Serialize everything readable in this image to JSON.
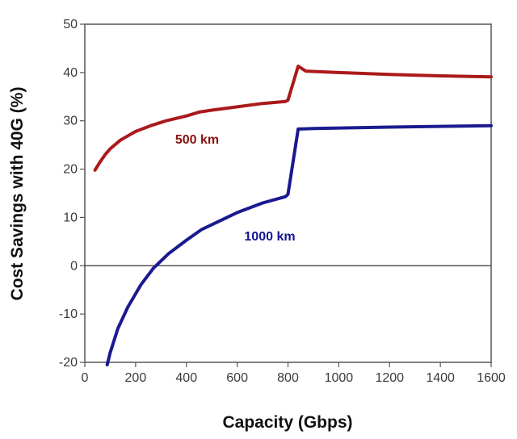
{
  "chart_data": {
    "type": "line",
    "xlabel": "Capacity (Gbps)",
    "ylabel": "Cost Savings with 40G (%)",
    "xlim": [
      0,
      1600
    ],
    "ylim": [
      -20,
      50
    ],
    "xticks": [
      0,
      200,
      400,
      600,
      800,
      1000,
      1200,
      1400,
      1600
    ],
    "yticks": [
      -20,
      -10,
      0,
      10,
      20,
      30,
      40,
      50
    ],
    "grid": false,
    "zero_line": true,
    "series": [
      {
        "name": "500 km",
        "color": "#aa1a1a",
        "label_color": "#8a1010",
        "points": [
          [
            40,
            19.8
          ],
          [
            60,
            21.5
          ],
          [
            80,
            23
          ],
          [
            100,
            24.2
          ],
          [
            140,
            26
          ],
          [
            200,
            27.8
          ],
          [
            260,
            29
          ],
          [
            320,
            30
          ],
          [
            400,
            31
          ],
          [
            450,
            31.8
          ],
          [
            500,
            32.2
          ],
          [
            600,
            32.9
          ],
          [
            700,
            33.6
          ],
          [
            790,
            34
          ],
          [
            800,
            34.3
          ],
          [
            840,
            41.3
          ],
          [
            870,
            40.3
          ],
          [
            1000,
            40
          ],
          [
            1200,
            39.6
          ],
          [
            1400,
            39.3
          ],
          [
            1600,
            39.1
          ]
        ]
      },
      {
        "name": "1000 km",
        "color": "#1a1a90",
        "label_color": "#151590",
        "points": [
          [
            88,
            -20.5
          ],
          [
            100,
            -18
          ],
          [
            130,
            -13
          ],
          [
            170,
            -8.5
          ],
          [
            220,
            -4
          ],
          [
            270,
            -0.5
          ],
          [
            330,
            2.5
          ],
          [
            400,
            5.3
          ],
          [
            460,
            7.5
          ],
          [
            520,
            9
          ],
          [
            600,
            11
          ],
          [
            700,
            13
          ],
          [
            790,
            14.3
          ],
          [
            800,
            14.8
          ],
          [
            840,
            28.3
          ],
          [
            900,
            28.4
          ],
          [
            1200,
            28.7
          ],
          [
            1600,
            29
          ]
        ]
      }
    ]
  }
}
